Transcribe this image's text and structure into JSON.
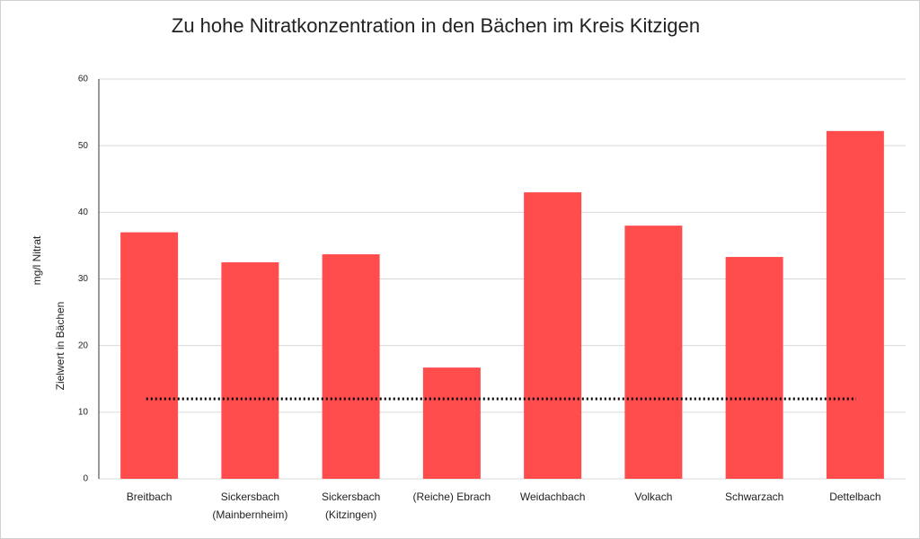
{
  "chart_data": {
    "type": "bar",
    "title": "Zu hohe Nitratkonzentration in den Bächen im Kreis Kitzigen",
    "y_label": "mg/l Nitrat",
    "categories": [
      [
        "Breitbach"
      ],
      [
        "Sickersbach",
        "(Mainbernheim)"
      ],
      [
        "Sickersbach",
        "(Kitzingen)"
      ],
      [
        "(Reiche) Ebrach"
      ],
      [
        "Weidachbach"
      ],
      [
        "Volkach"
      ],
      [
        "Schwarzach"
      ],
      [
        "Dettelbach"
      ]
    ],
    "values": [
      37,
      32.5,
      33.7,
      16.7,
      43,
      38,
      33.3,
      52.2
    ],
    "color": "#ff4d4d",
    "target": {
      "name": "Zielwert in Bächen",
      "value": 12
    },
    "ylim": [
      0,
      60
    ],
    "yticks": [
      0,
      10,
      20,
      30,
      40,
      50,
      60
    ],
    "grid": true
  }
}
